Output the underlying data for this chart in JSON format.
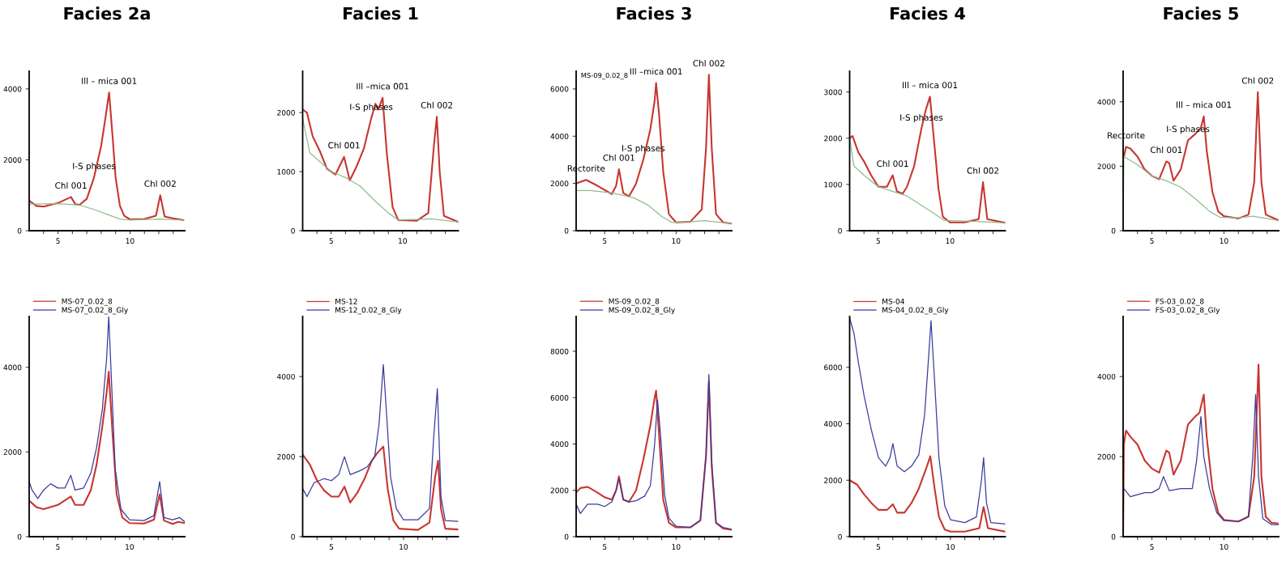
{
  "chart_data": [
    {
      "type": "line",
      "title": "Facies 2a",
      "xlim": [
        3,
        13.8
      ],
      "ylim": [
        0,
        4500
      ],
      "yticks": [
        0,
        2000,
        4000
      ],
      "xticks": [
        {
          "value": 4,
          "label": null
        },
        5,
        {
          "value": 6,
          "label": null
        },
        {
          "value": 7,
          "label": null
        },
        {
          "value": 8,
          "label": null
        },
        {
          "value": 9,
          "label": null
        },
        10,
        {
          "value": 11,
          "label": null
        },
        {
          "value": 12,
          "label": null
        },
        {
          "value": 13,
          "label": null
        }
      ],
      "grid": false,
      "annotations": [
        {
          "text": "I-S phases",
          "x": 7.5,
          "y": 1500
        },
        {
          "text": "Ill – mica 001",
          "x": 8.55,
          "y": 3900
        },
        {
          "text": "Chl 001",
          "x": 5.9,
          "y": 950
        },
        {
          "text": "Chl 002",
          "x": 12.1,
          "y": 1000
        }
      ],
      "series": [
        {
          "color": "#c8352f",
          "x": [
            3,
            3.5,
            4,
            5,
            5.9,
            6.2,
            6.5,
            7,
            7.5,
            8,
            8.3,
            8.55,
            8.8,
            9,
            9.3,
            9.6,
            10,
            11,
            11.8,
            12.1,
            12.4,
            13,
            13.7
          ],
          "values": [
            850,
            700,
            680,
            780,
            950,
            750,
            730,
            900,
            1500,
            2400,
            3200,
            3900,
            2600,
            1500,
            700,
            420,
            320,
            330,
            420,
            1000,
            400,
            350,
            300
          ]
        },
        {
          "color": "#8fbc8f",
          "x": [
            3,
            5,
            6.5,
            7.5,
            8.5,
            9.3,
            10,
            12,
            13.7
          ],
          "values": [
            750,
            760,
            720,
            600,
            450,
            330,
            300,
            330,
            300
          ]
        }
      ]
    },
    {
      "type": "line",
      "title": "Facies 1",
      "xlim": [
        3,
        13.9
      ],
      "ylim": [
        0,
        2700
      ],
      "yticks": [
        0,
        1000,
        2000
      ],
      "xticks": [
        {
          "value": 4,
          "label": null
        },
        5,
        {
          "value": 6,
          "label": null
        },
        {
          "value": 7,
          "label": null
        },
        {
          "value": 8,
          "label": null
        },
        {
          "value": 9,
          "label": null
        },
        10,
        {
          "value": 11,
          "label": null
        },
        {
          "value": 12,
          "label": null
        },
        {
          "value": 13,
          "label": null
        }
      ],
      "grid": false,
      "annotations": [
        {
          "text": "I-S phases",
          "x": 7.8,
          "y": 1900
        },
        {
          "text": "Ill –mica 001",
          "x": 8.6,
          "y": 2250
        },
        {
          "text": "Chl 001",
          "x": 5.9,
          "y": 1250
        },
        {
          "text": "Chl 002",
          "x": 12.4,
          "y": 1930
        }
      ],
      "series": [
        {
          "color": "#c8352f",
          "x": [
            3,
            3.3,
            3.7,
            4.2,
            4.7,
            5.3,
            5.9,
            6.3,
            6.8,
            7.3,
            7.8,
            8.1,
            8.3,
            8.6,
            8.9,
            9.3,
            9.7,
            11,
            11.8,
            12.2,
            12.4,
            12.6,
            12.9,
            13.9
          ],
          "values": [
            2050,
            2000,
            1600,
            1350,
            1050,
            950,
            1250,
            850,
            1100,
            1400,
            1900,
            2150,
            2050,
            2250,
            1300,
            400,
            180,
            170,
            300,
            1450,
            1930,
            1000,
            250,
            150
          ]
        },
        {
          "color": "#8fbc8f",
          "x": [
            3,
            3.5,
            5,
            6,
            7,
            8,
            9,
            9.7,
            12,
            13.9
          ],
          "values": [
            1900,
            1320,
            1000,
            900,
            760,
            520,
            300,
            180,
            200,
            150
          ]
        }
      ]
    },
    {
      "type": "line",
      "title": "Facies 3",
      "xlim": [
        3,
        13.9
      ],
      "ylim": [
        0,
        6750
      ],
      "yticks": [
        0,
        2000,
        4000,
        6000
      ],
      "xticks": [
        {
          "value": 4,
          "label": null
        },
        5,
        {
          "value": 6,
          "label": null
        },
        {
          "value": 7,
          "label": null
        },
        {
          "value": 8,
          "label": null
        },
        {
          "value": 9,
          "label": null
        },
        10,
        {
          "value": 11,
          "label": null
        },
        {
          "value": 12,
          "label": null
        },
        {
          "value": 13,
          "label": null
        }
      ],
      "grid": false,
      "annotations": [
        "MS-09_0.02_8",
        {
          "text": "I-S phases",
          "x": 7.7,
          "y": 3000
        },
        {
          "text": "Ill –mica 001",
          "x": 8.6,
          "y": 6250
        },
        {
          "text": "Chl 002",
          "x": 12.3,
          "y": 6600
        },
        {
          "text": "Chl 001",
          "x": 6.0,
          "y": 2600
        },
        {
          "text": "Rectorite",
          "x": 3.7,
          "y": 2150
        }
      ],
      "series": [
        {
          "color": "#c8352f",
          "x": [
            3,
            3.7,
            4.5,
            5.5,
            5.8,
            6.0,
            6.3,
            6.7,
            7.2,
            7.7,
            8.2,
            8.5,
            8.6,
            8.8,
            9.1,
            9.5,
            10,
            11,
            11.8,
            12.1,
            12.3,
            12.5,
            12.8,
            13.3,
            13.9
          ],
          "values": [
            2000,
            2150,
            1900,
            1550,
            1900,
            2600,
            1600,
            1450,
            2000,
            3000,
            4300,
            5500,
            6250,
            5000,
            2500,
            700,
            350,
            380,
            900,
            3500,
            6600,
            3500,
            700,
            350,
            300
          ]
        },
        {
          "color": "#8fbc8f",
          "x": [
            3,
            4,
            5.5,
            7,
            8,
            9,
            9.7,
            11,
            12,
            13.9
          ],
          "values": [
            1700,
            1700,
            1600,
            1400,
            1100,
            600,
            350,
            380,
            420,
            300
          ]
        }
      ]
    },
    {
      "type": "line",
      "title": "Facies 4",
      "xlim": [
        3,
        13.85
      ],
      "ylim": [
        0,
        3450
      ],
      "yticks": [
        0,
        1000,
        2000,
        3000
      ],
      "xticks": [
        {
          "value": 4,
          "label": null
        },
        5,
        {
          "value": 6,
          "label": null
        },
        {
          "value": 7,
          "label": null
        },
        {
          "value": 8,
          "label": null
        },
        {
          "value": 9,
          "label": null
        },
        10,
        {
          "value": 11,
          "label": null
        },
        {
          "value": 12,
          "label": null
        },
        {
          "value": 13,
          "label": null
        }
      ],
      "grid": false,
      "annotations": [
        {
          "text": "I-S phases",
          "x": 8,
          "y": 2200
        },
        {
          "text": "Ill – mica 001",
          "x": 8.6,
          "y": 2900
        },
        {
          "text": "Chl 001",
          "x": 6,
          "y": 1200
        },
        {
          "text": "Chl 002",
          "x": 12.3,
          "y": 1050
        }
      ],
      "series": [
        {
          "color": "#c8352f",
          "x": [
            3,
            3.2,
            3.6,
            4,
            4.5,
            5,
            5.6,
            6,
            6.3,
            6.7,
            7,
            7.5,
            8,
            8.3,
            8.6,
            8.9,
            9.2,
            9.5,
            10,
            11,
            12,
            12.3,
            12.6,
            13.85
          ],
          "values": [
            2000,
            2050,
            1700,
            1500,
            1200,
            950,
            950,
            1200,
            850,
            800,
            950,
            1400,
            2200,
            2600,
            2900,
            1900,
            900,
            300,
            180,
            180,
            250,
            1050,
            250,
            170
          ]
        },
        {
          "color": "#8fbc8f",
          "x": [
            3,
            3.3,
            4,
            5,
            6,
            7,
            8,
            9,
            9.6,
            12,
            13.85
          ],
          "values": [
            2000,
            1400,
            1200,
            950,
            850,
            750,
            550,
            350,
            220,
            200,
            170
          ]
        }
      ]
    },
    {
      "type": "line",
      "title": "Facies 5",
      "xlim": [
        3,
        13.8
      ],
      "ylim": [
        0,
        4950
      ],
      "yticks": [
        0,
        2000,
        4000
      ],
      "xticks": [
        {
          "value": 4,
          "label": null
        },
        5,
        {
          "value": 6,
          "label": null
        },
        {
          "value": 7,
          "label": null
        },
        {
          "value": 8,
          "label": null
        },
        {
          "value": 9,
          "label": null
        },
        10,
        {
          "value": 11,
          "label": null
        },
        {
          "value": 12,
          "label": null
        },
        {
          "value": 13,
          "label": null
        }
      ],
      "grid": false,
      "annotations": [
        {
          "text": "I-S phases",
          "x": 7.5,
          "y": 2800
        },
        {
          "text": "Ill – mica 001",
          "x": 8.6,
          "y": 3550
        },
        {
          "text": "Chl 002",
          "x": 12.35,
          "y": 4300
        },
        {
          "text": "Rectorite",
          "x": 3.2,
          "y": 2600
        },
        {
          "text": "Chl 001",
          "x": 6,
          "y": 2150
        }
      ],
      "series": [
        {
          "color": "#c8352f",
          "x": [
            3.05,
            3.2,
            3.5,
            4,
            4.5,
            5,
            5.5,
            6,
            6.2,
            6.5,
            7,
            7.5,
            8,
            8.4,
            8.6,
            8.8,
            9.2,
            9.6,
            10,
            11,
            11.7,
            12.1,
            12.35,
            12.6,
            12.9,
            13.8
          ],
          "values": [
            2300,
            2600,
            2550,
            2300,
            1900,
            1700,
            1600,
            2150,
            2100,
            1550,
            1900,
            2800,
            3000,
            3200,
            3550,
            2500,
            1200,
            600,
            450,
            380,
            500,
            1500,
            4300,
            1500,
            500,
            320
          ]
        },
        {
          "color": "#8fbc8f",
          "x": [
            3,
            3.05,
            4,
            5,
            6,
            7,
            8,
            9,
            9.7,
            11,
            12,
            13.8
          ],
          "values": [
            0,
            2300,
            2050,
            1700,
            1550,
            1350,
            1000,
            600,
            420,
            400,
            450,
            320
          ]
        }
      ]
    },
    {
      "type": "line",
      "xlim": [
        3,
        13.85
      ],
      "ylim": [
        0,
        5200
      ],
      "yticks": [
        0,
        2000,
        4000
      ],
      "xticks": [
        {
          "value": 4,
          "label": null
        },
        5,
        {
          "value": 6,
          "label": null
        },
        {
          "value": 7,
          "label": null
        },
        {
          "value": 8,
          "label": null
        },
        {
          "value": 9,
          "label": null
        },
        10,
        {
          "value": 11,
          "label": null
        },
        {
          "value": 12,
          "label": null
        },
        {
          "value": 13,
          "label": null
        }
      ],
      "grid": false,
      "legend": "top left",
      "series": [
        {
          "name": "MS-07_0.02_8",
          "color": "#c8352f",
          "x": [
            3,
            3.5,
            4,
            5,
            5.9,
            6.2,
            6.8,
            7.3,
            7.7,
            8.1,
            8.4,
            8.55,
            8.8,
            9.1,
            9.5,
            10,
            11,
            11.7,
            12.1,
            12.4,
            13,
            13.4,
            13.85
          ],
          "values": [
            850,
            700,
            650,
            750,
            950,
            750,
            750,
            1100,
            1700,
            2600,
            3400,
            3900,
            2500,
            1000,
            450,
            320,
            310,
            400,
            1000,
            380,
            300,
            350,
            320
          ]
        },
        {
          "name": "MS-07_0.02_8_Gly",
          "color": "#3b3b9e",
          "x": [
            3,
            3.2,
            3.6,
            4,
            4.5,
            5,
            5.5,
            5.9,
            6.2,
            6.8,
            7.3,
            7.7,
            8.1,
            8.4,
            8.55,
            8.7,
            9,
            9.4,
            10,
            11,
            11.7,
            12.1,
            12.4,
            13,
            13.5,
            13.85
          ],
          "values": [
            1300,
            1100,
            900,
            1100,
            1250,
            1150,
            1150,
            1450,
            1100,
            1150,
            1500,
            2100,
            3000,
            4200,
            5200,
            4000,
            1600,
            650,
            400,
            380,
            500,
            1300,
            450,
            400,
            450,
            350
          ]
        }
      ]
    },
    {
      "type": "line",
      "xlim": [
        3,
        13.8
      ],
      "ylim": [
        0,
        5500
      ],
      "yticks": [
        0,
        2000,
        4000
      ],
      "xticks": [
        {
          "value": 4,
          "label": null
        },
        5,
        {
          "value": 6,
          "label": null
        },
        {
          "value": 7,
          "label": null
        },
        {
          "value": 8,
          "label": null
        },
        {
          "value": 9,
          "label": null
        },
        10,
        {
          "value": 11,
          "label": null
        },
        {
          "value": 12,
          "label": null
        },
        {
          "value": 13,
          "label": null
        }
      ],
      "grid": false,
      "legend": "top left",
      "series": [
        {
          "name": "MS-12",
          "color": "#c8352f",
          "x": [
            3,
            3.5,
            4,
            4.5,
            5,
            5.5,
            5.9,
            6.3,
            6.8,
            7.3,
            7.8,
            8.2,
            8.6,
            8.9,
            9.3,
            9.7,
            11,
            11.8,
            12.2,
            12.4,
            12.6,
            12.9,
            13.8
          ],
          "values": [
            2050,
            1800,
            1400,
            1150,
            1000,
            1000,
            1250,
            850,
            1100,
            1450,
            1900,
            2100,
            2250,
            1200,
            400,
            200,
            170,
            350,
            1500,
            1900,
            700,
            200,
            180
          ]
        },
        {
          "name": "MS-12_0.02_8_Gly",
          "color": "#3b3b9e",
          "x": [
            3,
            3.3,
            3.8,
            4.5,
            5,
            5.5,
            5.9,
            6.3,
            7,
            7.5,
            8,
            8.3,
            8.6,
            8.8,
            9.1,
            9.5,
            10,
            11,
            11.8,
            12.1,
            12.35,
            12.6,
            12.9,
            13.8
          ],
          "values": [
            1200,
            1000,
            1350,
            1450,
            1400,
            1550,
            2000,
            1550,
            1650,
            1750,
            2000,
            2800,
            4300,
            3200,
            1500,
            700,
            420,
            420,
            700,
            2500,
            3700,
            1000,
            400,
            380
          ]
        }
      ]
    },
    {
      "type": "line",
      "xlim": [
        3,
        13.9
      ],
      "ylim": [
        0,
        9500
      ],
      "yticks": [
        0,
        2000,
        4000,
        6000,
        8000
      ],
      "xticks": [
        {
          "value": 4,
          "label": null
        },
        5,
        {
          "value": 6,
          "label": null
        },
        {
          "value": 7,
          "label": null
        },
        {
          "value": 8,
          "label": null
        },
        {
          "value": 9,
          "label": null
        },
        10,
        {
          "value": 11,
          "label": null
        },
        {
          "value": 12,
          "label": null
        },
        {
          "value": 13,
          "label": null
        }
      ],
      "grid": false,
      "legend": "top left",
      "series": [
        {
          "name": "MS-09_0.02_8",
          "color": "#c8352f",
          "x": [
            3,
            3.3,
            3.8,
            4.5,
            5,
            5.5,
            5.8,
            6.0,
            6.3,
            6.7,
            7.2,
            7.7,
            8.2,
            8.5,
            8.6,
            8.8,
            9.1,
            9.5,
            10,
            11,
            11.7,
            12.1,
            12.3,
            12.5,
            12.8,
            13.3,
            13.9
          ],
          "values": [
            1900,
            2100,
            2150,
            1900,
            1700,
            1600,
            2000,
            2600,
            1600,
            1500,
            2000,
            3300,
            4800,
            6000,
            6300,
            4500,
            1600,
            600,
            400,
            400,
            700,
            3500,
            6700,
            3000,
            600,
            350,
            300
          ]
        },
        {
          "name": "MS-09_0.02_8_Gly",
          "color": "#3b3b9e",
          "x": [
            3,
            3.3,
            3.8,
            4.5,
            5,
            5.5,
            5.8,
            6.0,
            6.3,
            6.7,
            7.2,
            7.8,
            8.2,
            8.5,
            8.7,
            8.9,
            9.2,
            9.5,
            10,
            11,
            11.7,
            12.1,
            12.3,
            12.5,
            12.8,
            13.3,
            13.9
          ],
          "values": [
            1400,
            1000,
            1400,
            1400,
            1300,
            1500,
            2000,
            2500,
            1600,
            1500,
            1550,
            1750,
            2200,
            4000,
            5900,
            4500,
            1800,
            800,
            450,
            400,
            700,
            3500,
            7000,
            3200,
            600,
            400,
            320
          ]
        }
      ]
    },
    {
      "type": "line",
      "xlim": [
        3,
        13.8
      ],
      "ylim": [
        0,
        7800
      ],
      "yticks": [
        0,
        2000,
        4000,
        6000
      ],
      "xticks": [
        {
          "value": 4,
          "label": null
        },
        5,
        {
          "value": 6,
          "label": null
        },
        {
          "value": 7,
          "label": null
        },
        {
          "value": 8,
          "label": null
        },
        {
          "value": 9,
          "label": null
        },
        10,
        {
          "value": 11,
          "label": null
        },
        {
          "value": 12,
          "label": null
        },
        {
          "value": 13,
          "label": null
        }
      ],
      "grid": false,
      "legend": "top left",
      "series": [
        {
          "name": "MS-04",
          "color": "#c8352f",
          "x": [
            3,
            3.5,
            4,
            4.5,
            5,
            5.6,
            6,
            6.3,
            6.8,
            7.3,
            7.8,
            8.3,
            8.6,
            8.9,
            9.2,
            9.6,
            10,
            11,
            12,
            12.3,
            12.6,
            13.8
          ],
          "values": [
            2000,
            1850,
            1500,
            1200,
            950,
            950,
            1150,
            850,
            850,
            1200,
            1700,
            2400,
            2850,
            1700,
            700,
            250,
            180,
            180,
            300,
            1050,
            300,
            180
          ]
        },
        {
          "name": "MS-04_0.02_8_Gly",
          "color": "#3b3b9e",
          "x": [
            3,
            3.3,
            3.6,
            4,
            4.5,
            5,
            5.5,
            5.8,
            6.0,
            6.3,
            6.8,
            7.3,
            7.8,
            8.2,
            8.5,
            8.65,
            8.9,
            9.2,
            9.6,
            10,
            11,
            11.8,
            12.15,
            12.3,
            12.5,
            12.8,
            13.8
          ],
          "values": [
            7750,
            7200,
            6200,
            5000,
            3800,
            2800,
            2500,
            2800,
            3300,
            2500,
            2300,
            2500,
            2900,
            4300,
            6500,
            7650,
            5500,
            2800,
            1100,
            600,
            500,
            700,
            2000,
            2800,
            1200,
            500,
            450
          ]
        }
      ]
    },
    {
      "type": "line",
      "xlim": [
        3,
        13.8
      ],
      "ylim": [
        0,
        5500
      ],
      "yticks": [
        0,
        2000,
        4000
      ],
      "xticks": [
        {
          "value": 4,
          "label": null
        },
        5,
        {
          "value": 6,
          "label": null
        },
        {
          "value": 7,
          "label": null
        },
        {
          "value": 8,
          "label": null
        },
        {
          "value": 9,
          "label": null
        },
        10,
        {
          "value": 11,
          "label": null
        },
        {
          "value": 12,
          "label": null
        },
        {
          "value": 13,
          "label": null
        }
      ],
      "grid": false,
      "legend": "top left",
      "series": [
        {
          "name": "FS-03_0.02_8",
          "color": "#c8352f",
          "x": [
            3,
            3.05,
            3.2,
            3.5,
            4,
            4.5,
            5,
            5.5,
            6,
            6.2,
            6.5,
            7,
            7.5,
            8,
            8.3,
            8.6,
            8.8,
            9.2,
            9.6,
            10,
            11,
            11.7,
            12.1,
            12.4,
            12.6,
            12.9,
            13.3,
            13.8
          ],
          "values": [
            0,
            2300,
            2650,
            2500,
            2300,
            1900,
            1700,
            1600,
            2150,
            2100,
            1550,
            1900,
            2800,
            3000,
            3100,
            3550,
            2500,
            1200,
            600,
            420,
            380,
            500,
            1500,
            4300,
            1500,
            500,
            350,
            330
          ]
        },
        {
          "name": "FS-03_0.02_8_Gly",
          "color": "#3b3b9e",
          "x": [
            3.05,
            3.5,
            4,
            4.5,
            5,
            5.5,
            5.8,
            6.2,
            7,
            7.8,
            8.1,
            8.4,
            8.6,
            9,
            9.5,
            10,
            11,
            11.7,
            12.0,
            12.2,
            12.4,
            12.7,
            13.3,
            13.8
          ],
          "values": [
            1200,
            1000,
            1050,
            1100,
            1100,
            1200,
            1500,
            1150,
            1200,
            1200,
            1900,
            3000,
            2000,
            1200,
            600,
            400,
            380,
            500,
            2000,
            3550,
            1500,
            450,
            300,
            300
          ]
        }
      ]
    }
  ]
}
